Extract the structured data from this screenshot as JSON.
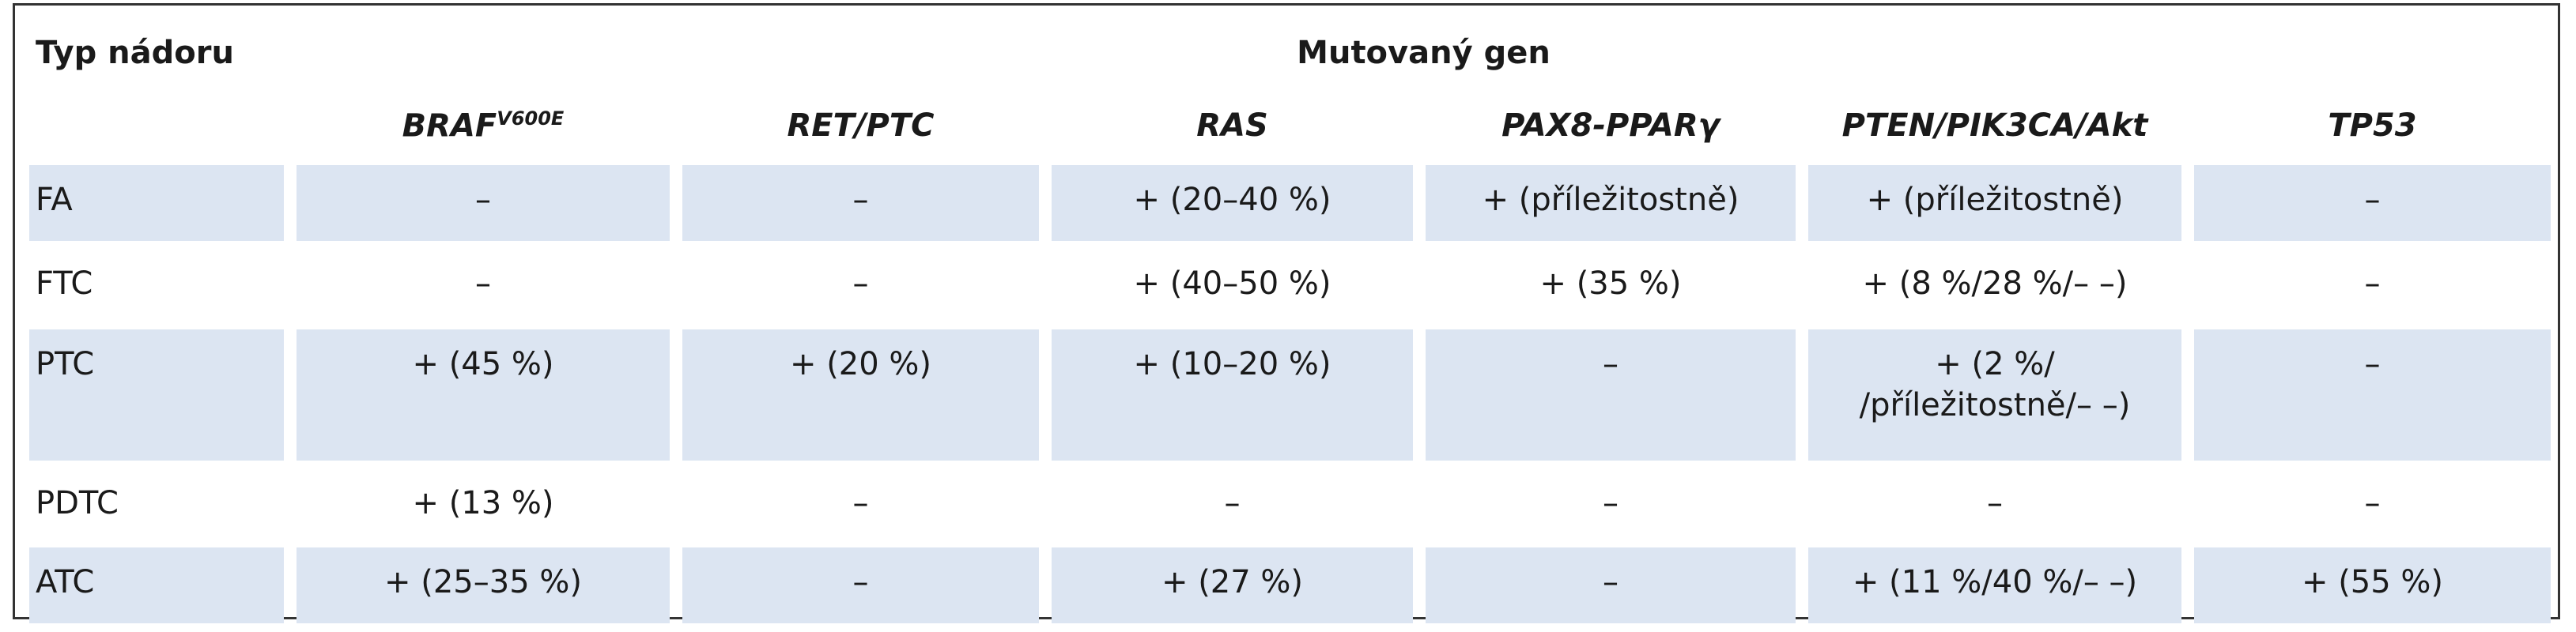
{
  "header": {
    "row_label": "Typ nádoru",
    "group": "Mutovaný gen"
  },
  "table": {
    "columns": [
      {
        "text": "BRAF",
        "sup": "V600E"
      },
      {
        "text": "RET/PTC"
      },
      {
        "text": "RAS"
      },
      {
        "text": "PAX8-PPARγ"
      },
      {
        "text": "PTEN/PIK3CA/Akt"
      },
      {
        "text": "TP53"
      }
    ],
    "rows": [
      [
        "FA",
        "–",
        "–",
        "+ (20–40 %)",
        "+ (příležitostně)",
        "+ (příležitostně)",
        "–"
      ],
      [
        "FTC",
        "–",
        "–",
        "+ (40–50 %)",
        "+ (35 %)",
        "+ (8 %/28 %/– –)",
        "–"
      ],
      [
        "PTC",
        "+ (45 %)",
        "+ (20 %)",
        "+ (10–20 %)",
        "–",
        "+ (2 %/\n/příležitostně/– –)",
        "–"
      ],
      [
        "PDTC",
        "+ (13 %)",
        "–",
        "–",
        "–",
        "–",
        "–"
      ],
      [
        "ATC",
        "+ (25–35 %)",
        "–",
        "+ (27 %)",
        "–",
        "+ (11 %/40 %/– –)",
        "+ (55 %)"
      ]
    ]
  }
}
